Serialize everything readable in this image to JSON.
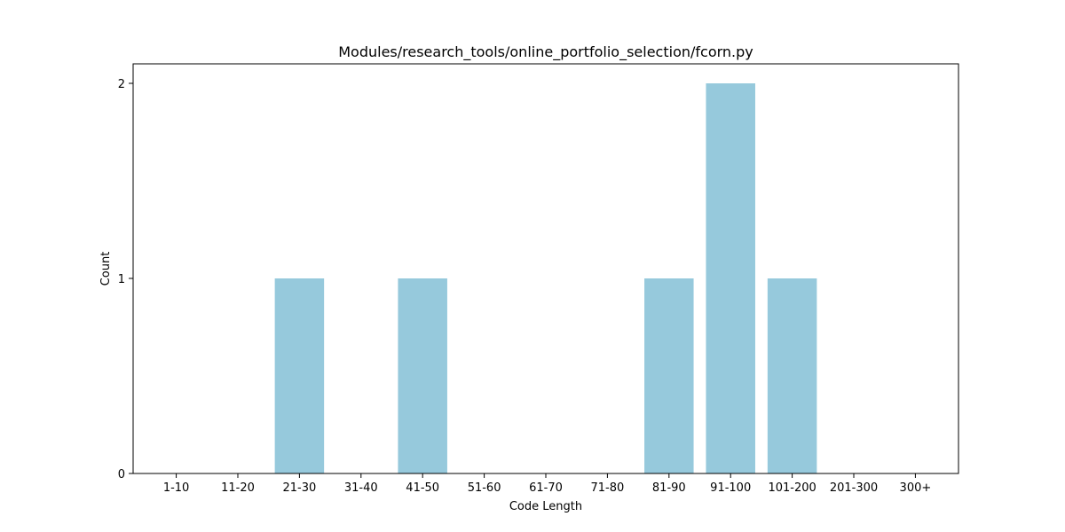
{
  "chart_data": {
    "type": "bar",
    "title": "Modules/research_tools/online_portfolio_selection/fcorn.py",
    "xlabel": "Code Length",
    "ylabel": "Count",
    "categories": [
      "1-10",
      "11-20",
      "21-30",
      "31-40",
      "41-50",
      "51-60",
      "61-70",
      "71-80",
      "81-90",
      "91-100",
      "101-200",
      "201-300",
      "300+"
    ],
    "values": [
      0,
      0,
      1,
      0,
      1,
      0,
      0,
      0,
      1,
      2,
      1,
      0,
      0
    ],
    "yticks": [
      0,
      1,
      2
    ],
    "ylim": [
      0,
      2.1
    ],
    "bar_color": "#96c9dc",
    "grid": false,
    "legend": "none"
  }
}
